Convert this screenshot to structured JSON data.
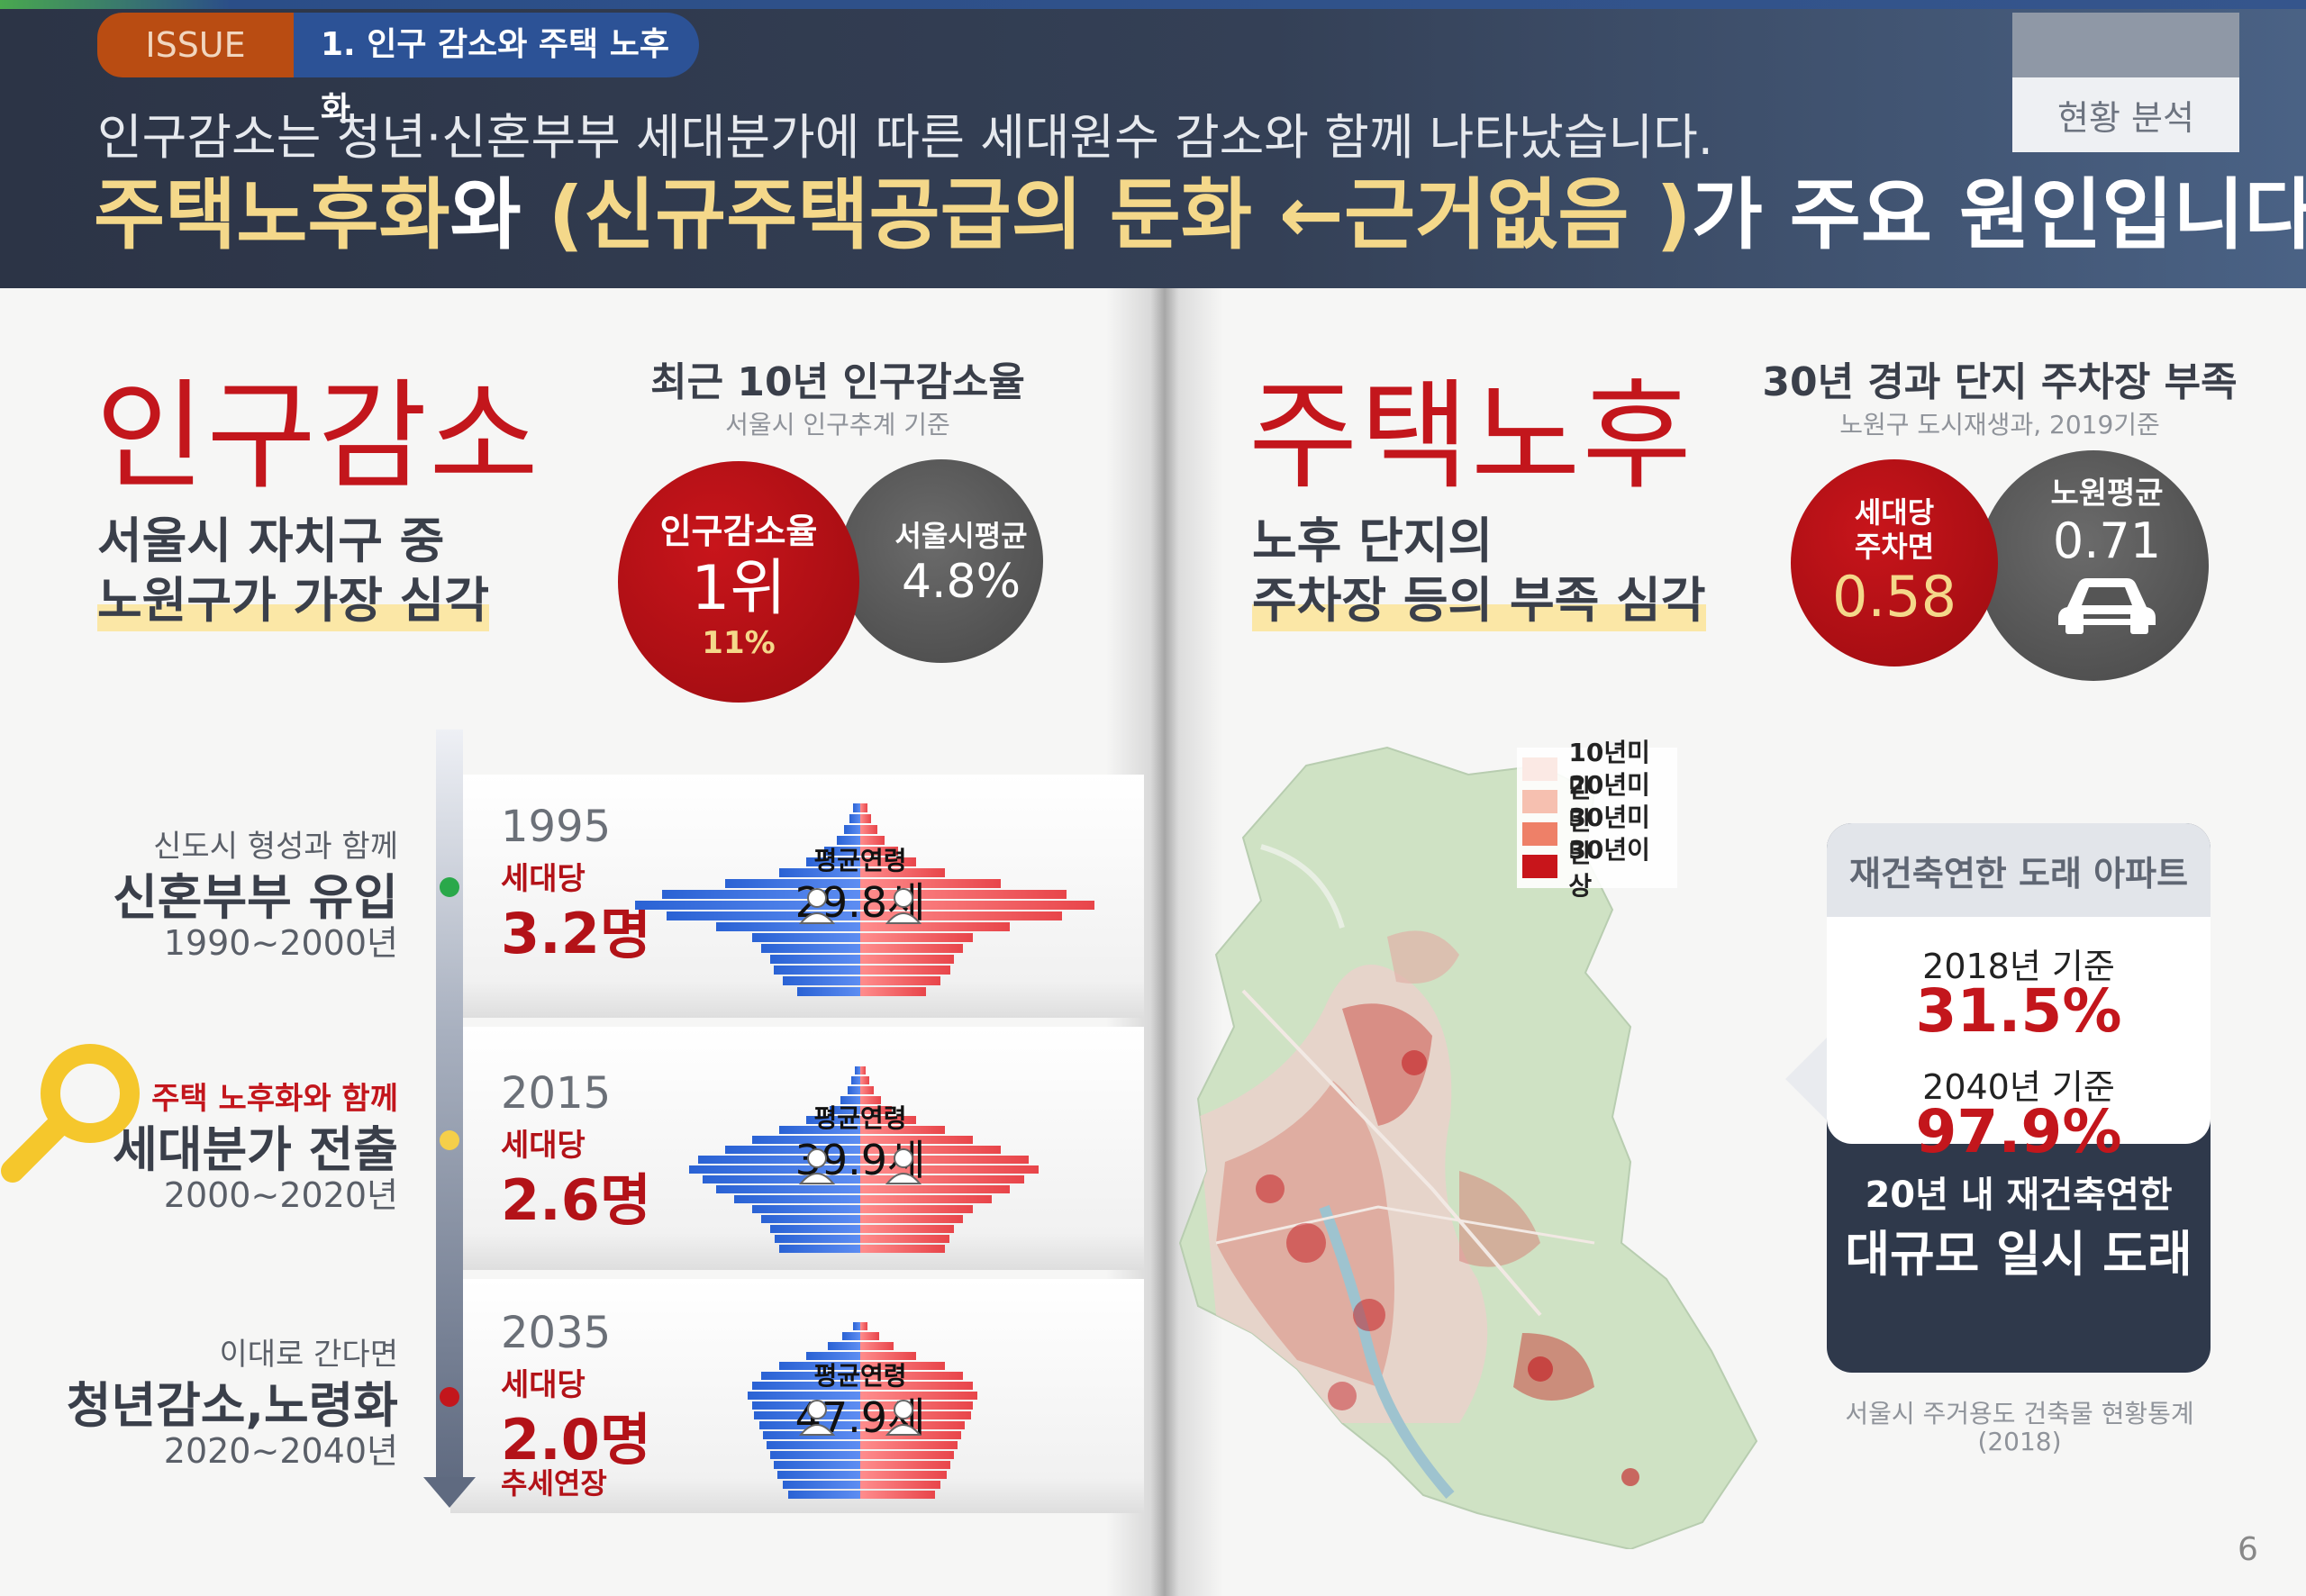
{
  "header": {
    "issue_badge": "ISSUE",
    "issue_title": "1. 인구 감소와 주택 노후화",
    "status_tag": "현황 분석",
    "subtitle": "인구감소는 청년·신혼부부 세대분가에 따른 세대원수 감소와 함께 나타났습니다.",
    "headline_part1": "주택노후화",
    "headline_part2": "와 ",
    "headline_part3": "(신규주택공급의 둔화 ←근거없음 )",
    "headline_part4": "가 주요 원인입니다."
  },
  "left": {
    "title": "인구감소",
    "lead_line1": "서울시 자치구 중",
    "lead_line2": "노원구가 가장 심각",
    "stat_title": "최근 10년 인구감소율",
    "stat_source": "서울시 인구추계 기준",
    "rank_label": "인구감소율",
    "rank_value": "1위",
    "rank_pct": "11%",
    "avg_label": "서울시평균",
    "avg_value": "4.8%",
    "avg_age_label": "평균연령",
    "household_label": "세대당",
    "eras": [
      {
        "pre": "신도시 형성과 함께",
        "main": "신혼부부 유입",
        "range": "1990~2000년",
        "year": "1995",
        "household": "3.2명",
        "avg_age": "29.8세",
        "note": ""
      },
      {
        "pre": "주택 노후화와 함께",
        "main": "세대분가 전출",
        "range": "2000~2020년",
        "year": "2015",
        "household": "2.6명",
        "avg_age": "39.9세",
        "note": ""
      },
      {
        "pre": "이대로 간다면",
        "main": "청년감소,노령화",
        "range": "2020~2040년",
        "year": "2035",
        "household": "2.0명",
        "avg_age": "47.9세",
        "note": "추세연장"
      }
    ]
  },
  "right": {
    "title": "주택노후",
    "lead_line1": "노후 단지의",
    "lead_line2": "주차장 등의 부족 심각",
    "stat_title": "30년 경과 단지 주차장 부족",
    "stat_source": "노원구 도시재생과, 2019기준",
    "parking_label1": "세대당",
    "parking_label2": "주차면",
    "parking_value": "0.58",
    "nowon_avg_label": "노원평균",
    "nowon_avg_value": "0.71",
    "legend": [
      {
        "label": "10년미만",
        "color": "#fbe9e4"
      },
      {
        "label": "20년미만",
        "color": "#f6c0b0"
      },
      {
        "label": "30년미만",
        "color": "#ee8068"
      },
      {
        "label": "30년이상",
        "color": "#c8151b"
      }
    ],
    "panel_head": "재건축연한 도래 아파트",
    "panel_rows": [
      {
        "year": "2018년 기준",
        "pct": "31.5%"
      },
      {
        "year": "2040년 기준",
        "pct": "97.9%"
      }
    ],
    "panel_foot1": "20년 내 재건축연한",
    "panel_foot2": "대규모 일시 도래",
    "source_line1": "서울시 주거용도 건축물 현황통계",
    "source_line2": "(2018)"
  },
  "page_number": "6",
  "colors": {
    "accent_red": "#c3161c",
    "navy": "#2f394b",
    "highlight": "#fbe7a6",
    "headline_yellow": "#f4d88a"
  }
}
